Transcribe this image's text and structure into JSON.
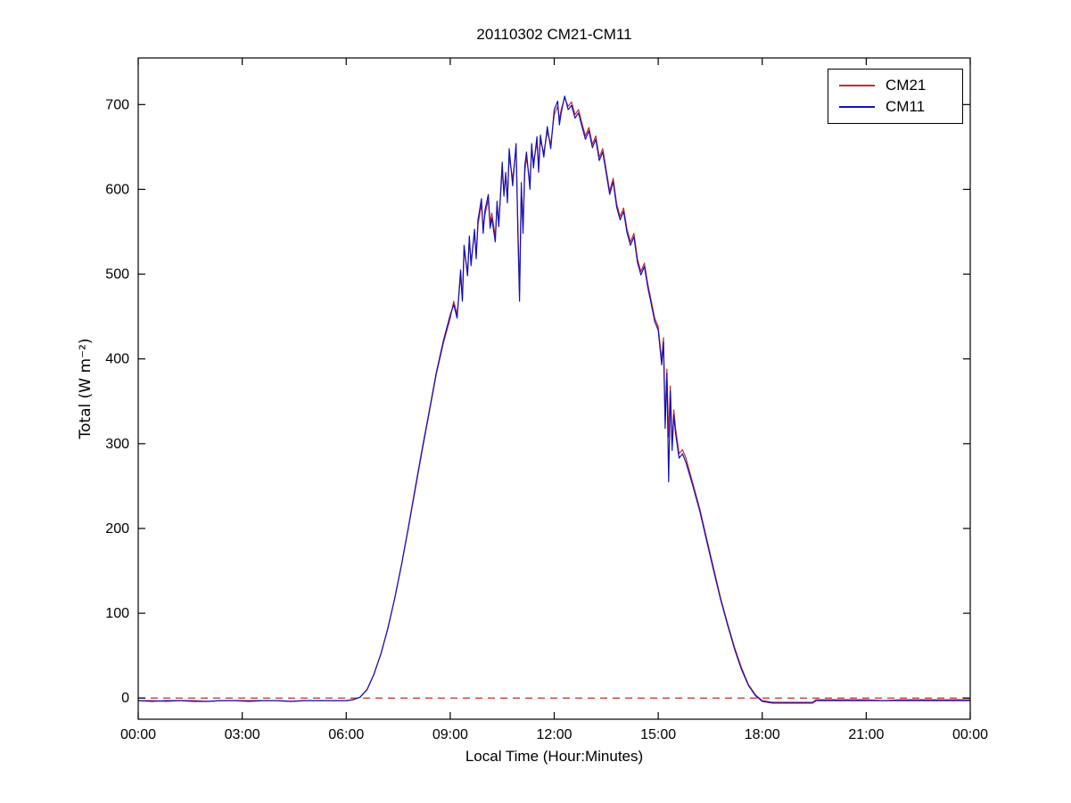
{
  "figure": {
    "background": "#ffffff"
  },
  "chart_data": {
    "type": "line",
    "title": "20110302 CM21-CM11",
    "xlabel": "Local Time (Hour:Minutes)",
    "ylabel": "Total (W m⁻²)",
    "xlim": [
      0,
      24
    ],
    "ylim": [
      -25,
      755
    ],
    "x_ticks": [
      0,
      3,
      6,
      9,
      12,
      15,
      18,
      21,
      24
    ],
    "x_tick_labels": [
      "00:00",
      "03:00",
      "06:00",
      "09:00",
      "12:00",
      "15:00",
      "18:00",
      "21:00",
      "00:00"
    ],
    "y_ticks": [
      0,
      100,
      200,
      300,
      400,
      500,
      600,
      700
    ],
    "y_tick_labels": [
      "0",
      "100",
      "200",
      "300",
      "400",
      "500",
      "600",
      "700"
    ],
    "grid": false,
    "legend": {
      "position": "top-right",
      "border": true
    },
    "zero_line": {
      "y": 0,
      "color": "#cc2929",
      "style": "dashed"
    },
    "series": [
      {
        "name": "CM21",
        "color": "#cc2929",
        "style": "solid"
      },
      {
        "name": "CM11",
        "color": "#1111bb",
        "style": "solid"
      }
    ],
    "points_format": [
      "time_hours",
      "CM21_Wm2",
      "CM11_Wm2"
    ],
    "points": [
      [
        0,
        -3,
        -3
      ],
      [
        0.4,
        -3,
        -4
      ],
      [
        0.8,
        -4,
        -3
      ],
      [
        1.2,
        -3,
        -3
      ],
      [
        1.6,
        -3,
        -4
      ],
      [
        2,
        -4,
        -4
      ],
      [
        2.4,
        -3,
        -3
      ],
      [
        2.8,
        -3,
        -3
      ],
      [
        3.2,
        -3,
        -4
      ],
      [
        3.6,
        -3,
        -3
      ],
      [
        4,
        -3,
        -3
      ],
      [
        4.4,
        -4,
        -4
      ],
      [
        4.8,
        -3,
        -3
      ],
      [
        5.2,
        -3,
        -3
      ],
      [
        5.6,
        -3,
        -3
      ],
      [
        6,
        -3,
        -3
      ],
      [
        6.2,
        -2,
        -2
      ],
      [
        6.4,
        1,
        1
      ],
      [
        6.6,
        10,
        10
      ],
      [
        6.8,
        28,
        28
      ],
      [
        7,
        52,
        52
      ],
      [
        7.2,
        82,
        82
      ],
      [
        7.4,
        118,
        118
      ],
      [
        7.6,
        158,
        158
      ],
      [
        7.8,
        202,
        203
      ],
      [
        8,
        248,
        250
      ],
      [
        8.2,
        294,
        296
      ],
      [
        8.4,
        338,
        340
      ],
      [
        8.6,
        382,
        384
      ],
      [
        8.8,
        418,
        421
      ],
      [
        9,
        448,
        452
      ],
      [
        9.1,
        468,
        464
      ],
      [
        9.2,
        452,
        448
      ],
      [
        9.3,
        498,
        505
      ],
      [
        9.35,
        470,
        468
      ],
      [
        9.4,
        528,
        534
      ],
      [
        9.5,
        502,
        498
      ],
      [
        9.55,
        540,
        545
      ],
      [
        9.6,
        515,
        510
      ],
      [
        9.7,
        548,
        553
      ],
      [
        9.75,
        522,
        518
      ],
      [
        9.8,
        558,
        564
      ],
      [
        9.9,
        583,
        589
      ],
      [
        9.95,
        555,
        548
      ],
      [
        10,
        570,
        575
      ],
      [
        10.1,
        588,
        594
      ],
      [
        10.15,
        560,
        554
      ],
      [
        10.2,
        572,
        566
      ],
      [
        10.3,
        544,
        538
      ],
      [
        10.35,
        580,
        586
      ],
      [
        10.4,
        562,
        556
      ],
      [
        10.5,
        622,
        632
      ],
      [
        10.55,
        598,
        592
      ],
      [
        10.6,
        615,
        620
      ],
      [
        10.65,
        590,
        584
      ],
      [
        10.7,
        638,
        648
      ],
      [
        10.8,
        612,
        604
      ],
      [
        10.9,
        648,
        654
      ],
      [
        10.95,
        560,
        550
      ],
      [
        11,
        478,
        468
      ],
      [
        11.05,
        598,
        608
      ],
      [
        11.1,
        558,
        548
      ],
      [
        11.15,
        620,
        628
      ],
      [
        11.2,
        638,
        644
      ],
      [
        11.3,
        608,
        600
      ],
      [
        11.35,
        648,
        654
      ],
      [
        11.4,
        632,
        625
      ],
      [
        11.5,
        655,
        662
      ],
      [
        11.55,
        628,
        620
      ],
      [
        11.6,
        658,
        664
      ],
      [
        11.7,
        643,
        638
      ],
      [
        11.8,
        668,
        674
      ],
      [
        11.9,
        653,
        648
      ],
      [
        12,
        688,
        694
      ],
      [
        12.1,
        698,
        704
      ],
      [
        12.15,
        682,
        676
      ],
      [
        12.2,
        694,
        690
      ],
      [
        12.3,
        708,
        710
      ],
      [
        12.4,
        698,
        694
      ],
      [
        12.5,
        703,
        699
      ],
      [
        12.6,
        688,
        684
      ],
      [
        12.7,
        694,
        690
      ],
      [
        12.8,
        678,
        674
      ],
      [
        12.9,
        663,
        659
      ],
      [
        13,
        673,
        669
      ],
      [
        13.1,
        653,
        649
      ],
      [
        13.2,
        663,
        659
      ],
      [
        13.3,
        638,
        634
      ],
      [
        13.4,
        648,
        644
      ],
      [
        13.5,
        623,
        619
      ],
      [
        13.6,
        598,
        594
      ],
      [
        13.7,
        613,
        609
      ],
      [
        13.8,
        583,
        579
      ],
      [
        13.9,
        568,
        564
      ],
      [
        14,
        578,
        574
      ],
      [
        14.1,
        553,
        549
      ],
      [
        14.2,
        538,
        534
      ],
      [
        14.3,
        548,
        544
      ],
      [
        14.4,
        518,
        514
      ],
      [
        14.5,
        503,
        499
      ],
      [
        14.6,
        513,
        509
      ],
      [
        14.7,
        488,
        484
      ],
      [
        14.8,
        468,
        464
      ],
      [
        14.9,
        448,
        444
      ],
      [
        15,
        438,
        434
      ],
      [
        15.1,
        398,
        393
      ],
      [
        15.15,
        425,
        420
      ],
      [
        15.2,
        328,
        318
      ],
      [
        15.25,
        388,
        383
      ],
      [
        15.3,
        308,
        255
      ],
      [
        15.35,
        368,
        362
      ],
      [
        15.4,
        298,
        292
      ],
      [
        15.45,
        340,
        334
      ],
      [
        15.5,
        318,
        312
      ],
      [
        15.6,
        288,
        283
      ],
      [
        15.7,
        293,
        288
      ],
      [
        15.8,
        283,
        278
      ],
      [
        15.9,
        268,
        264
      ],
      [
        16,
        253,
        250
      ],
      [
        16.2,
        223,
        220
      ],
      [
        16.4,
        188,
        185
      ],
      [
        16.6,
        153,
        150
      ],
      [
        16.8,
        118,
        116
      ],
      [
        17,
        88,
        86
      ],
      [
        17.2,
        60,
        58
      ],
      [
        17.4,
        36,
        34
      ],
      [
        17.6,
        16,
        15
      ],
      [
        17.8,
        4,
        3
      ],
      [
        18,
        -3,
        -4
      ],
      [
        18.3,
        -5,
        -6
      ],
      [
        18.7,
        -5,
        -6
      ],
      [
        19.1,
        -5,
        -6
      ],
      [
        19.45,
        -5,
        -6
      ],
      [
        19.55,
        -2,
        -3
      ],
      [
        20,
        -2,
        -3
      ],
      [
        20.5,
        -2,
        -3
      ],
      [
        21,
        -2,
        -3
      ],
      [
        21.5,
        -3,
        -3
      ],
      [
        22,
        -2,
        -3
      ],
      [
        22.5,
        -2,
        -3
      ],
      [
        23,
        -2,
        -3
      ],
      [
        23.5,
        -2,
        -3
      ],
      [
        24,
        -2,
        -3
      ]
    ]
  }
}
